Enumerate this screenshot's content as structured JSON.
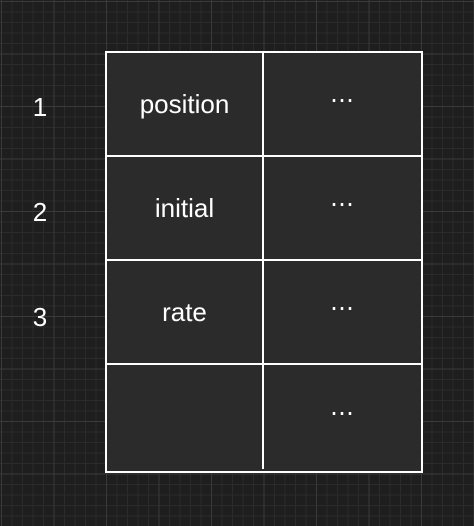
{
  "row_numbers": [
    "1",
    "2",
    "3"
  ],
  "rows": [
    {
      "name": "position",
      "value": "⋯"
    },
    {
      "name": "initial",
      "value": "⋯"
    },
    {
      "name": "rate",
      "value": "⋯"
    },
    {
      "name": "",
      "value": "⋯"
    }
  ],
  "colors": {
    "background": "#1e1e1e",
    "cell_fill": "#2b2b2b",
    "line": "#ffffff",
    "text": "#ffffff"
  }
}
